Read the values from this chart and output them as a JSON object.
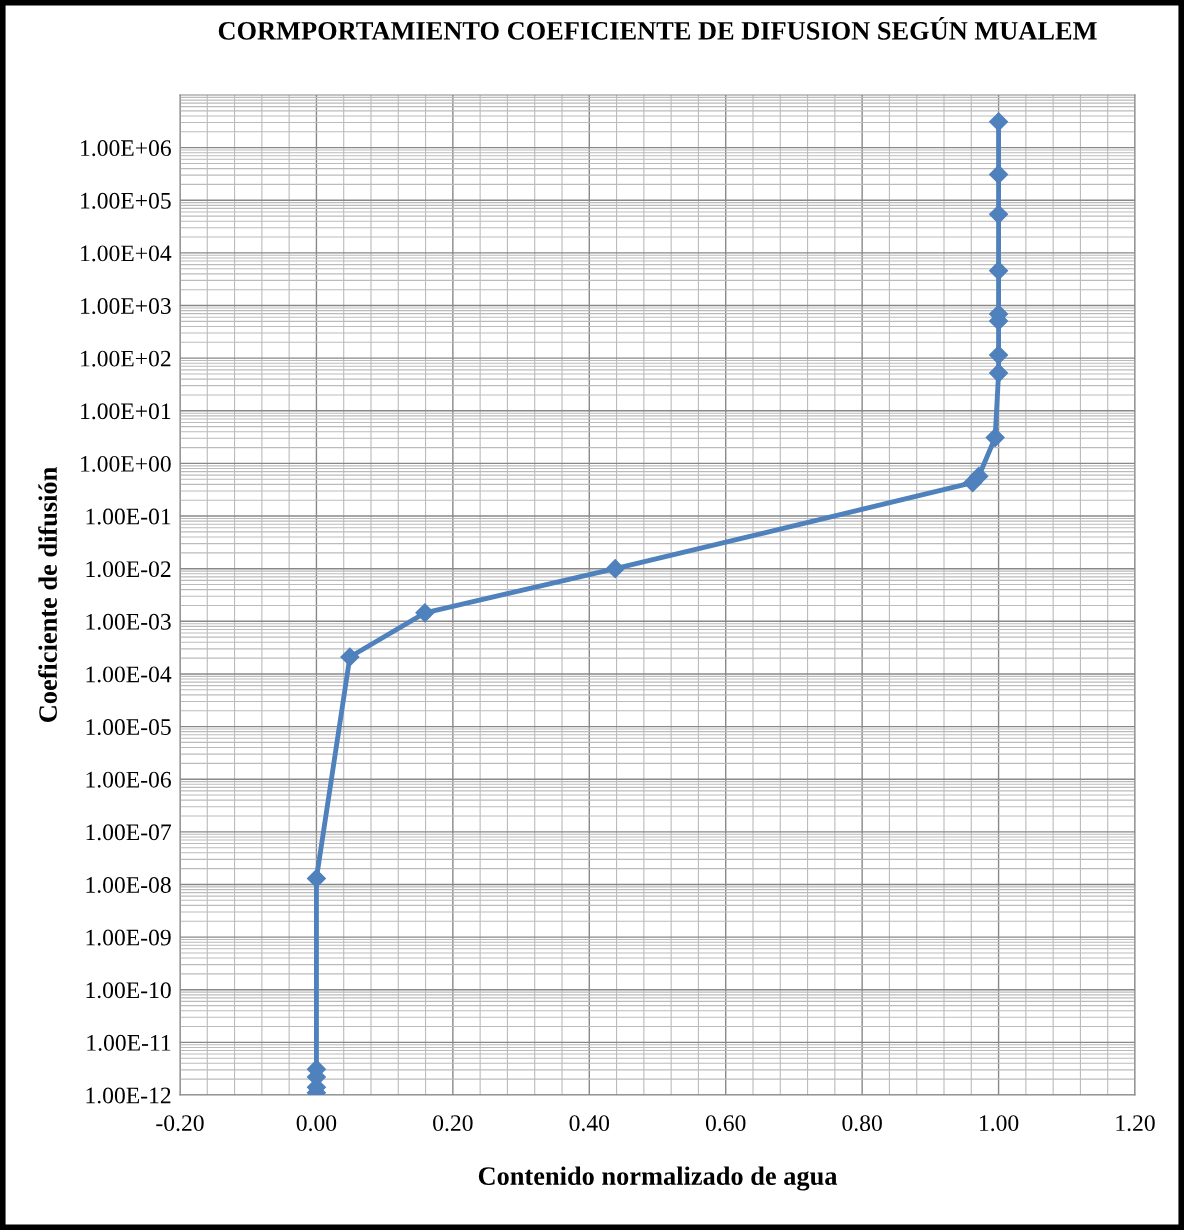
{
  "chart_data": {
    "type": "line",
    "title": "CORMPORTAMIENTO COEFICIENTE DE DIFUSION SEGÚN MUALEM",
    "xlabel": "Contenido normalizado de agua",
    "ylabel": "Coeficiente de difusión",
    "series": [
      {
        "color": "#4f81bd",
        "x": [
          0.0,
          0.0,
          0.0,
          0.0,
          0.0,
          0.049,
          0.159,
          0.438,
          0.962,
          0.971,
          0.995,
          1.0,
          1.0,
          1.0,
          1.0,
          1.0,
          1.0,
          1.0,
          1.0
        ],
        "values": [
          1.1e-12,
          1.4e-12,
          2.2e-12,
          3.1e-12,
          1.3e-08,
          0.00021,
          0.00145,
          0.01,
          0.43,
          0.57,
          3.1,
          52,
          115,
          510,
          690,
          4600,
          54000,
          310000,
          3100000
        ]
      }
    ],
    "log": "y",
    "marker": "diamond",
    "line_style": "solid",
    "grid": true,
    "xlim": [
      -0.2,
      1.2
    ],
    "xticks": [
      {
        "value": -0.2,
        "label": "-0.20"
      },
      {
        "value": 0,
        "label": "0.00"
      },
      {
        "value": 0.2,
        "label": "0.20"
      },
      {
        "value": 0.4,
        "label": "0.40"
      },
      {
        "value": 0.6,
        "label": "0.60"
      },
      {
        "value": 0.8,
        "label": "0.80"
      },
      {
        "value": 1.0,
        "label": "1.00"
      },
      {
        "value": 1.2,
        "label": "1.20"
      }
    ],
    "ylim": [
      1e-12,
      10000000.0
    ],
    "yticks": [
      {
        "value": 1e-12,
        "label": "1.00E-12"
      },
      {
        "value": 1e-11,
        "label": "1.00E-11"
      },
      {
        "value": 1e-10,
        "label": "1.00E-10"
      },
      {
        "value": 1e-09,
        "label": "1.00E-09"
      },
      {
        "value": 1e-08,
        "label": "1.00E-08"
      },
      {
        "value": 1e-07,
        "label": "1.00E-07"
      },
      {
        "value": 1e-06,
        "label": "1.00E-06"
      },
      {
        "value": 1e-05,
        "label": "1.00E-05"
      },
      {
        "value": 0.0001,
        "label": "1.00E-04"
      },
      {
        "value": 0.001,
        "label": "1.00E-03"
      },
      {
        "value": 0.01,
        "label": "1.00E-02"
      },
      {
        "value": 0.1,
        "label": "1.00E-01"
      },
      {
        "value": 1,
        "label": "1.00E+00"
      },
      {
        "value": 10,
        "label": "1.00E+01"
      },
      {
        "value": 100,
        "label": "1.00E+02"
      },
      {
        "value": 1000,
        "label": "1.00E+03"
      },
      {
        "value": 10000.0,
        "label": "1.00E+04"
      },
      {
        "value": 100000.0,
        "label": "1.00E+05"
      },
      {
        "value": 1000000.0,
        "label": "1.00E+06"
      }
    ]
  }
}
